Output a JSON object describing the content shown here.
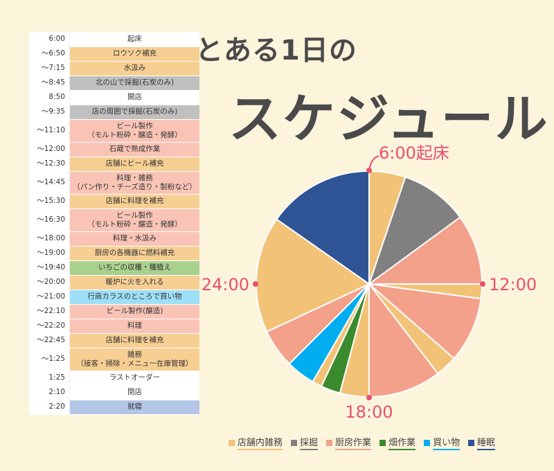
{
  "title": {
    "line1": "とある1日の",
    "line2": "スケジュール"
  },
  "schedule": [
    {
      "time": "6:00",
      "activity": "起床",
      "cat": "none"
    },
    {
      "time": "～6:50",
      "activity": "ロウソク補充",
      "cat": "shop"
    },
    {
      "time": "～7:15",
      "activity": "水汲み",
      "cat": "shop"
    },
    {
      "time": "～8:45",
      "activity": "北の山で採掘(石炭のみ)",
      "cat": "mining"
    },
    {
      "time": "8:50",
      "activity": "開店",
      "cat": "none"
    },
    {
      "time": "～9:35",
      "activity": "店の周囲で採掘(石炭のみ)",
      "cat": "mining"
    },
    {
      "time": "～11:10",
      "activity": "ビール製作\n（モルト粉砕・醸造・発酵）",
      "cat": "kitchen"
    },
    {
      "time": "～12:00",
      "activity": "石蔵で熟成作業",
      "cat": "kitchen"
    },
    {
      "time": "～12:30",
      "activity": "店舗にビール補充",
      "cat": "shop"
    },
    {
      "time": "～14:45",
      "activity": "料理・雑務\n（パン作り・チーズ造り・製粉など）",
      "cat": "kitchen"
    },
    {
      "time": "～15:30",
      "activity": "店舗に料理を補充",
      "cat": "shop"
    },
    {
      "time": "～16:30",
      "activity": "ビール製作\n（モルト粉砕・醸造・発酵）",
      "cat": "kitchen"
    },
    {
      "time": "～18:00",
      "activity": "料理・水汲み",
      "cat": "kitchen"
    },
    {
      "time": "～19:00",
      "activity": "厨房の各機器に燃料補充",
      "cat": "shop"
    },
    {
      "time": "～19:40",
      "activity": "いちごの収穫・種植え",
      "cat": "farm"
    },
    {
      "time": "～20:00",
      "activity": "暖炉に火を入れる",
      "cat": "shop"
    },
    {
      "time": "～21:00",
      "activity": "行商カラスのところで買い物",
      "cat": "buy"
    },
    {
      "time": "～22:10",
      "activity": "ビール製作(醸造)",
      "cat": "kitchen"
    },
    {
      "time": "～22:20",
      "activity": "料理",
      "cat": "kitchen"
    },
    {
      "time": "～22:45",
      "activity": "店舗に料理を補充",
      "cat": "shop"
    },
    {
      "time": "～1:25",
      "activity": "雑務\n（接客・掃除・メニュー在庫管理）",
      "cat": "shop"
    },
    {
      "time": "1:25",
      "activity": "ラストオーダー",
      "cat": "none"
    },
    {
      "time": "2:10",
      "activity": "閉店",
      "cat": "none"
    },
    {
      "time": "2:20",
      "activity": "就寝",
      "cat": "sleep"
    }
  ],
  "chart_data": {
    "type": "pie",
    "start_label": "6:00起床",
    "clock_labels": [
      "12:00",
      "18:00",
      "24:00"
    ],
    "series_legend": [
      {
        "key": "shop",
        "name": "店舗内雑務",
        "color": "#f2c277"
      },
      {
        "key": "mining",
        "name": "採掘",
        "color": "#808080"
      },
      {
        "key": "kitchen",
        "name": "厨房作業",
        "color": "#f3a18b"
      },
      {
        "key": "farm",
        "name": "畑作業",
        "color": "#3a8a2e"
      },
      {
        "key": "buy",
        "name": "買い物",
        "color": "#00aef0"
      },
      {
        "key": "sleep",
        "name": "睡眠",
        "color": "#2f5496"
      }
    ],
    "slices": [
      {
        "from": "6:00",
        "to": "7:15",
        "category": "shop",
        "minutes": 75
      },
      {
        "from": "7:15",
        "to": "9:35",
        "category": "mining",
        "minutes": 140
      },
      {
        "from": "9:35",
        "to": "12:00",
        "category": "kitchen",
        "minutes": 145
      },
      {
        "from": "12:00",
        "to": "12:30",
        "category": "shop",
        "minutes": 30
      },
      {
        "from": "12:30",
        "to": "14:45",
        "category": "kitchen",
        "minutes": 135
      },
      {
        "from": "14:45",
        "to": "15:30",
        "category": "shop",
        "minutes": 45
      },
      {
        "from": "15:30",
        "to": "18:00",
        "category": "kitchen",
        "minutes": 150
      },
      {
        "from": "18:00",
        "to": "19:00",
        "category": "shop",
        "minutes": 60
      },
      {
        "from": "19:00",
        "to": "19:40",
        "category": "farm",
        "minutes": 40
      },
      {
        "from": "19:40",
        "to": "20:00",
        "category": "shop",
        "minutes": 20
      },
      {
        "from": "20:00",
        "to": "21:00",
        "category": "buy",
        "minutes": 60
      },
      {
        "from": "21:00",
        "to": "22:20",
        "category": "kitchen",
        "minutes": 80
      },
      {
        "from": "22:20",
        "to": "2:20",
        "category": "shop",
        "minutes": 240
      },
      {
        "from": "2:20",
        "to": "6:00",
        "category": "sleep",
        "minutes": 220
      }
    ]
  },
  "colors": {
    "shop_row": "#f7cf93",
    "mining_row": "#c0c0c0",
    "kitchen_row": "#f9c4b6",
    "farm_row": "#a9d18e",
    "buy_row": "#9ee0f7",
    "sleep_row": "#b4c6e7",
    "none_row": "#ffffff",
    "clock_marker": "#e8506e",
    "clock_label": "#e8506e"
  }
}
